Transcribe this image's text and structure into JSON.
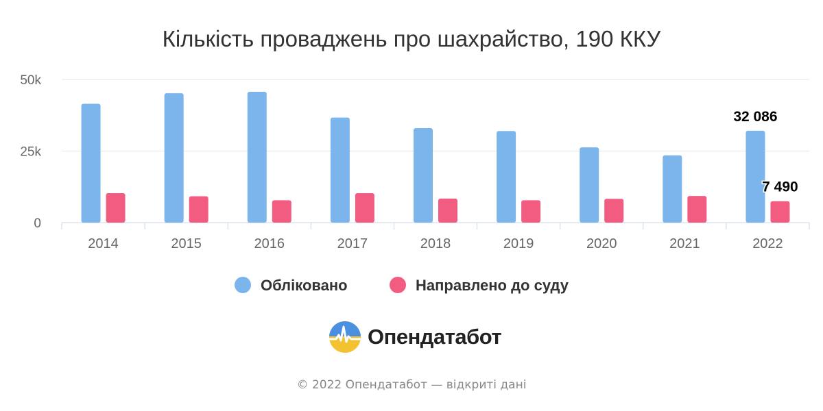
{
  "chart_data": {
    "type": "bar",
    "title": "Кількість проваджень про шахрайство, 190 ККУ",
    "categories": [
      "2014",
      "2015",
      "2016",
      "2017",
      "2018",
      "2019",
      "2020",
      "2021",
      "2022"
    ],
    "series": [
      {
        "name": "Обліковано",
        "color": "#7cb5ec",
        "values": [
          41500,
          45200,
          45700,
          36700,
          33000,
          32000,
          26300,
          23500,
          32086
        ]
      },
      {
        "name": "Направлено до суду",
        "color": "#f15c80",
        "values": [
          10300,
          9200,
          7800,
          10300,
          8400,
          7800,
          8300,
          9300,
          7490
        ]
      }
    ],
    "ylim": [
      0,
      50000
    ],
    "yticks": [
      {
        "value": 0,
        "label": "0"
      },
      {
        "value": 25000,
        "label": "25k"
      },
      {
        "value": 50000,
        "label": "50k"
      }
    ],
    "data_labels": [
      {
        "series": 0,
        "index": 8,
        "text": "32 086"
      },
      {
        "series": 1,
        "index": 8,
        "text": "7 490"
      }
    ],
    "legend_position": "bottom-center",
    "grid": true
  },
  "branding": {
    "name": "Опендатабот",
    "logo_icon": "opendatabot-logo-icon",
    "copyright": "© 2022 Опендатабот — відкриті дані"
  }
}
